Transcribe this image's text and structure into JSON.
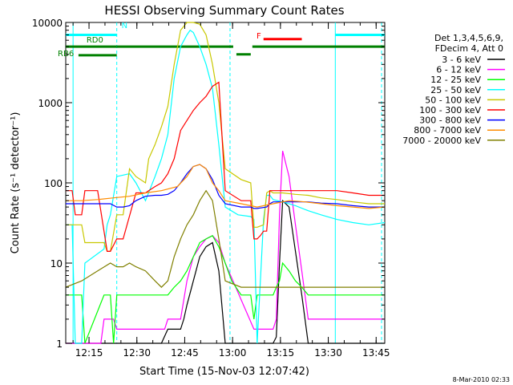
{
  "chart_data": {
    "type": "line",
    "title": "HESSI Observing Summary Count Rates",
    "xlabel": "Start Time (15-Nov-03 12:07:42)",
    "ylabel": "Count Rate (s⁻¹ detector⁻¹)",
    "yscale": "log",
    "ylim": [
      1,
      10000
    ],
    "xlim_minutes": [
      0,
      100
    ],
    "grid": false,
    "legend_position": "right",
    "x_ticks": [
      "12:15",
      "12:30",
      "12:45",
      "13:00",
      "13:15",
      "13:30",
      "13:45"
    ],
    "y_ticks": [
      "1",
      "10",
      "100",
      "1000",
      "10000"
    ],
    "legend_header": [
      "Det 1,3,4,5,6,9,",
      "FDecim 4, Att 0"
    ],
    "footer": "8-Mar-2010 02:33",
    "annotations": [
      {
        "text": "N",
        "color": "#00ffff"
      },
      {
        "text": "RD0",
        "color": "#008000"
      },
      {
        "text": "RB6",
        "color": "#008000"
      },
      {
        "text": "F",
        "color": "#ff0000"
      }
    ],
    "series": [
      {
        "name": "3 - 6 keV",
        "color": "#000000",
        "x": [
          0,
          15,
          16,
          20,
          22,
          25,
          28,
          30,
          32,
          34,
          36,
          37,
          38,
          40,
          42,
          44,
          46,
          48,
          50,
          60,
          61,
          62,
          63,
          64,
          65,
          66,
          67,
          68,
          70,
          72,
          74,
          76,
          100
        ],
        "y": [
          1,
          1,
          1,
          1,
          1,
          1,
          1,
          1,
          1.5,
          1.5,
          1.5,
          2,
          3,
          6,
          12,
          16,
          18,
          8,
          1,
          1,
          1,
          1,
          1,
          1,
          1,
          1.2,
          10,
          60,
          50,
          14,
          4,
          1,
          1
        ]
      },
      {
        "name": "6 - 12 keV",
        "color": "#ff00ff",
        "x": [
          0,
          11,
          12,
          15,
          16,
          20,
          28,
          31,
          32,
          34,
          36,
          38,
          40,
          42,
          44,
          46,
          48,
          50,
          59,
          60,
          63,
          64,
          65,
          66,
          67,
          68,
          70,
          72,
          74,
          76,
          80,
          90,
          100
        ],
        "y": [
          1,
          1,
          2,
          2,
          1.5,
          1.5,
          1.5,
          1.5,
          2,
          2,
          2,
          6,
          12,
          16,
          20,
          22,
          18,
          10,
          1.5,
          1.5,
          1.5,
          1.5,
          1.5,
          2,
          40,
          250,
          120,
          30,
          8,
          2,
          2,
          2,
          2
        ]
      },
      {
        "name": "12 - 25 keV",
        "color": "#00ff00",
        "x": [
          0,
          5,
          6,
          12,
          14,
          15,
          16,
          20,
          22,
          25,
          28,
          30,
          32,
          34,
          36,
          38,
          40,
          42,
          44,
          46,
          48,
          50,
          52,
          55,
          58,
          59,
          60,
          61,
          63,
          64,
          65,
          66,
          67,
          68,
          70,
          72,
          74,
          76,
          80,
          90,
          100
        ],
        "y": [
          4,
          4,
          1,
          4,
          4,
          1,
          4,
          4,
          4,
          4,
          4,
          4,
          4,
          5,
          6,
          8,
          12,
          18,
          20,
          22,
          16,
          10,
          6,
          4,
          4,
          2,
          4,
          4,
          4,
          4,
          4,
          5,
          6,
          10,
          8,
          6,
          5,
          4,
          4,
          4,
          4
        ]
      },
      {
        "name": "25 - 50 keV",
        "color": "#00ffff",
        "x": [
          0,
          2,
          3,
          5,
          6,
          12,
          13,
          14,
          16,
          20,
          22,
          25,
          28,
          30,
          32,
          34,
          36,
          38,
          39,
          40,
          42,
          44,
          46,
          48,
          50,
          54,
          58,
          59,
          60,
          62,
          63,
          64,
          65,
          68,
          72,
          76,
          80,
          85,
          90,
          95,
          100
        ],
        "y": [
          30,
          30,
          1,
          1,
          10,
          15,
          30,
          40,
          120,
          130,
          100,
          60,
          120,
          200,
          400,
          2000,
          5000,
          7000,
          8000,
          7500,
          5000,
          3000,
          1500,
          300,
          50,
          40,
          38,
          35,
          1,
          35,
          70,
          70,
          62,
          58,
          52,
          45,
          40,
          35,
          32,
          30,
          32
        ]
      },
      {
        "name": "50 - 100 keV",
        "color": "#c8c800",
        "x": [
          0,
          5,
          6,
          12,
          13,
          14,
          16,
          18,
          20,
          22,
          25,
          26,
          28,
          30,
          32,
          34,
          36,
          38,
          40,
          42,
          44,
          46,
          48,
          50,
          55,
          58,
          59,
          60,
          62,
          63,
          64,
          65,
          68,
          72,
          76,
          80,
          85,
          90,
          95,
          100
        ],
        "y": [
          30,
          30,
          18,
          18,
          14,
          14,
          40,
          40,
          150,
          120,
          100,
          200,
          300,
          500,
          900,
          3000,
          8000,
          10000,
          10000,
          9500,
          7000,
          3000,
          1000,
          150,
          110,
          100,
          28,
          28,
          30,
          75,
          80,
          75,
          75,
          72,
          70,
          65,
          62,
          58,
          55,
          55
        ]
      },
      {
        "name": "100 - 300 keV",
        "color": "#ff0000",
        "x": [
          0,
          2,
          3,
          5,
          6,
          10,
          13,
          14,
          16,
          18,
          22,
          25,
          26,
          28,
          30,
          32,
          34,
          36,
          38,
          40,
          42,
          44,
          46,
          48,
          50,
          55,
          58,
          59,
          60,
          61,
          62,
          63,
          64,
          65,
          68,
          72,
          76,
          80,
          85,
          90,
          95,
          100
        ],
        "y": [
          80,
          80,
          40,
          40,
          80,
          80,
          14,
          14,
          20,
          20,
          75,
          75,
          80,
          90,
          100,
          130,
          200,
          450,
          600,
          800,
          1000,
          1200,
          1600,
          1800,
          80,
          60,
          60,
          20,
          20,
          22,
          25,
          25,
          80,
          80,
          80,
          80,
          80,
          80,
          80,
          75,
          70,
          70
        ]
      },
      {
        "name": "300 - 800 keV",
        "color": "#0000ff",
        "x": [
          0,
          2,
          3,
          5,
          6,
          10,
          12,
          14,
          16,
          18,
          20,
          22,
          25,
          28,
          30,
          32,
          34,
          36,
          38,
          40,
          42,
          44,
          46,
          48,
          50,
          55,
          58,
          59,
          60,
          63,
          64,
          65,
          68,
          72,
          76,
          80,
          85,
          90,
          95,
          100
        ],
        "y": [
          55,
          55,
          55,
          55,
          55,
          55,
          55,
          55,
          50,
          50,
          52,
          60,
          68,
          70,
          70,
          72,
          80,
          100,
          130,
          160,
          170,
          150,
          110,
          70,
          55,
          50,
          50,
          48,
          48,
          50,
          55,
          58,
          58,
          58,
          58,
          56,
          55,
          52,
          50,
          50
        ]
      },
      {
        "name": "800 - 7000 keV",
        "color": "#ff8c00",
        "x": [
          0,
          5,
          10,
          15,
          20,
          25,
          30,
          35,
          38,
          40,
          42,
          44,
          46,
          48,
          50,
          55,
          60,
          65,
          70,
          75,
          80,
          85,
          90,
          95,
          100
        ],
        "y": [
          60,
          60,
          62,
          65,
          68,
          75,
          80,
          90,
          120,
          160,
          170,
          150,
          100,
          80,
          60,
          55,
          50,
          55,
          60,
          58,
          55,
          52,
          50,
          48,
          50
        ]
      },
      {
        "name": "7000 - 20000 keV",
        "color": "#808000",
        "x": [
          0,
          5,
          10,
          14,
          16,
          18,
          20,
          22,
          25,
          28,
          30,
          32,
          34,
          36,
          38,
          40,
          42,
          44,
          46,
          48,
          50,
          55,
          58,
          60,
          62,
          64,
          66,
          68,
          70,
          75,
          80,
          85,
          90,
          95,
          100
        ],
        "y": [
          5,
          6,
          8,
          10,
          9,
          9,
          10,
          9,
          8,
          6,
          5,
          6,
          12,
          20,
          30,
          40,
          60,
          80,
          60,
          20,
          6,
          5,
          5,
          5,
          5,
          5,
          5,
          5,
          5,
          5,
          5,
          5,
          5,
          5,
          5
        ]
      }
    ]
  }
}
